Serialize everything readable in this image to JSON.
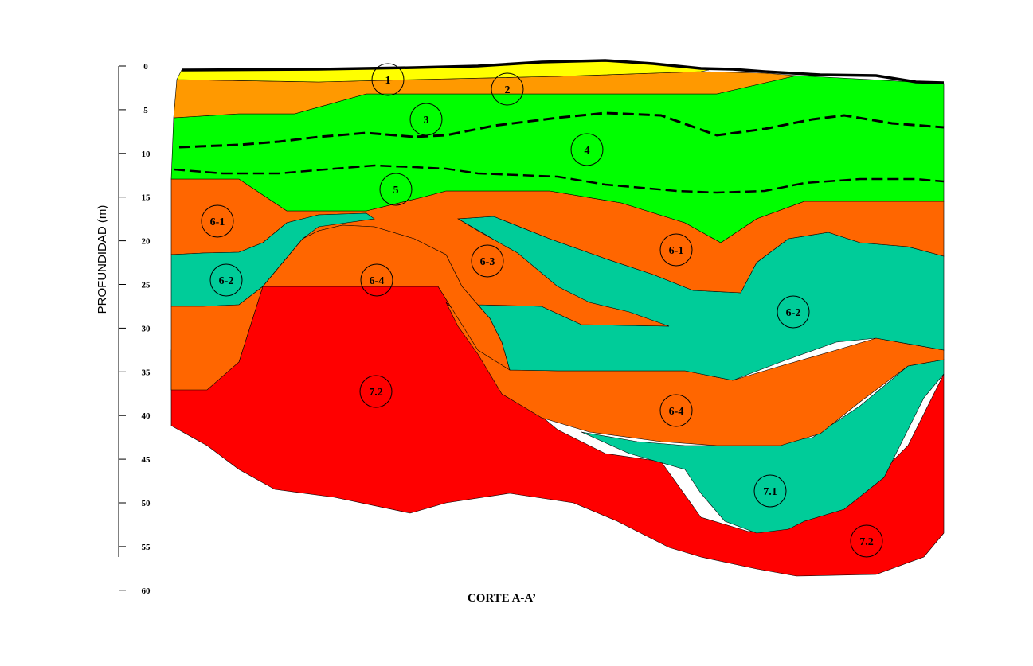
{
  "figure": {
    "caption": "CORTE A-A’",
    "axis_title": "PROFUNDIDAD (m)",
    "depth_ticks": [
      "0",
      "5",
      "10",
      "15",
      "20",
      "25",
      "30",
      "35",
      "40",
      "45",
      "50",
      "55",
      "60"
    ],
    "colors": {
      "yellow": "#ffff00",
      "light_orange": "#ff9900",
      "green": "#00ff00",
      "dark_orange": "#ff6600",
      "teal": "#00cc99",
      "red": "#ff0000"
    },
    "layer_labels": [
      "1",
      "2",
      "3",
      "4",
      "5",
      "6-1",
      "6-2",
      "6-4",
      "6-3",
      "6-1",
      "6-2",
      "6-4",
      "7.2",
      "7.1",
      "7.2"
    ]
  }
}
